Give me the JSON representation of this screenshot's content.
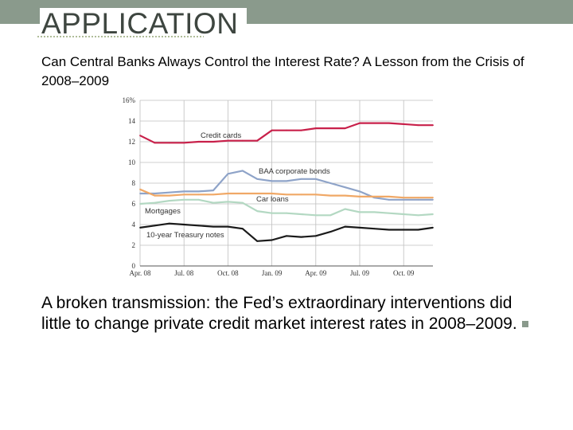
{
  "slide": {
    "title": "APPLICATION",
    "subtitle": "Can Central Banks Always Control the Interest Rate? A Lesson from the Crisis of 2008–2009",
    "body": "A broken transmission: the Fed’s extraordinary interventions did little to change private credit market interest rates in 2008–2009.",
    "colors": {
      "header_bar": "#8a9a8c",
      "bullet": "#8a9a8c",
      "title": "#3e4640"
    }
  },
  "chart_data": {
    "type": "line",
    "title": "",
    "xlabel": "",
    "ylabel": "",
    "ylim": [
      0,
      16
    ],
    "yticks": [
      "0",
      "2",
      "4",
      "6",
      "8",
      "10",
      "12",
      "14",
      "16%"
    ],
    "xticks": [
      "Apr. 08",
      "Jul. 08",
      "Oct. 08",
      "Jan. 09",
      "Apr. 09",
      "Jul. 09",
      "Oct. 09"
    ],
    "x": [
      "Apr. 08",
      "May 08",
      "Jun. 08",
      "Jul. 08",
      "Aug. 08",
      "Sep. 08",
      "Oct. 08",
      "Nov. 08",
      "Dec. 08",
      "Jan. 09",
      "Feb. 09",
      "Mar. 09",
      "Apr. 09",
      "May 09",
      "Jun. 09",
      "Jul. 09",
      "Aug. 09",
      "Sep. 09",
      "Oct. 09",
      "Nov. 09",
      "Dec. 09"
    ],
    "grid": true,
    "series": [
      {
        "name": "Credit cards",
        "color": "#c8204a",
        "values": [
          12.6,
          11.9,
          11.9,
          11.9,
          12.0,
          12.0,
          12.1,
          12.1,
          12.1,
          13.1,
          13.1,
          13.1,
          13.3,
          13.3,
          13.3,
          13.8,
          13.8,
          13.8,
          13.7,
          13.6,
          13.6
        ]
      },
      {
        "name": "BAA corporate bonds",
        "color": "#8ea3c8",
        "values": [
          7.0,
          7.0,
          7.1,
          7.2,
          7.2,
          7.3,
          8.9,
          9.2,
          8.4,
          8.2,
          8.2,
          8.4,
          8.4,
          8.0,
          7.6,
          7.2,
          6.6,
          6.4,
          6.4,
          6.4,
          6.4
        ]
      },
      {
        "name": "Car loans",
        "color": "#f0a866",
        "values": [
          7.4,
          6.8,
          6.8,
          6.9,
          6.9,
          6.9,
          7.0,
          7.0,
          7.0,
          7.0,
          6.9,
          6.9,
          6.9,
          6.8,
          6.8,
          6.7,
          6.7,
          6.7,
          6.6,
          6.6,
          6.6
        ]
      },
      {
        "name": "Mortgages",
        "color": "#b3d8c2",
        "values": [
          6.0,
          6.1,
          6.3,
          6.4,
          6.4,
          6.1,
          6.2,
          6.1,
          5.3,
          5.1,
          5.1,
          5.0,
          4.9,
          4.9,
          5.5,
          5.2,
          5.2,
          5.1,
          5.0,
          4.9,
          5.0
        ]
      },
      {
        "name": "10-year Treasury notes",
        "color": "#1a1a1a",
        "values": [
          3.7,
          3.9,
          4.1,
          4.0,
          3.9,
          3.8,
          3.8,
          3.6,
          2.4,
          2.5,
          2.9,
          2.8,
          2.9,
          3.3,
          3.8,
          3.7,
          3.6,
          3.5,
          3.5,
          3.5,
          3.7
        ]
      }
    ],
    "labels": [
      {
        "series": "Credit cards",
        "text": "Credit cards"
      },
      {
        "series": "BAA corporate bonds",
        "text": "BAA corporate bonds"
      },
      {
        "series": "Car loans",
        "text": "Car loans"
      },
      {
        "series": "Mortgages",
        "text": "Mortgages"
      },
      {
        "series": "10-year Treasury notes",
        "text": "10-year Treasury notes"
      }
    ]
  }
}
